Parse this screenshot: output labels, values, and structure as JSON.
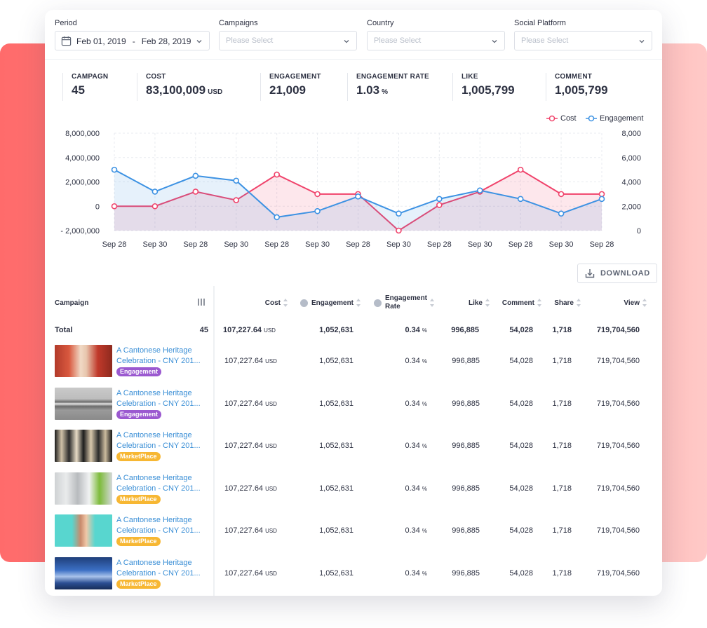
{
  "filters": {
    "period": {
      "label": "Period",
      "start": "Feb 01, 2019",
      "separator": "-",
      "end": "Feb 28, 2019"
    },
    "campaigns": {
      "label": "Campaigns",
      "placeholder": "Please Select"
    },
    "country": {
      "label": "Country",
      "placeholder": "Please Select"
    },
    "social": {
      "label": "Social Platform",
      "placeholder": "Please Select"
    }
  },
  "stats": [
    {
      "label": "CAMPAGN",
      "value": "45",
      "unit": ""
    },
    {
      "label": "COST",
      "value": "83,100,009",
      "unit": "USD"
    },
    {
      "label": "ENGAGEMENT",
      "value": "21,009",
      "unit": ""
    },
    {
      "label": "ENGAGEMENT RATE",
      "value": "1.03",
      "unit": "%"
    },
    {
      "label": "LIKE",
      "value": "1,005,799",
      "unit": ""
    },
    {
      "label": "COMMENT",
      "value": "1,005,799",
      "unit": ""
    }
  ],
  "chart_data": {
    "type": "area",
    "categories": [
      "Sep 28",
      "Sep 30",
      "Sep 28",
      "Sep 30",
      "Sep 28",
      "Sep 30",
      "Sep 28",
      "Sep 30",
      "Sep 28",
      "Sep 30",
      "Sep 28",
      "Sep 30",
      "Sep 28"
    ],
    "series": [
      {
        "name": "Cost",
        "axis": "left",
        "color": "#f0436b",
        "values": [
          0,
          0,
          1200000,
          500000,
          2600000,
          1000000,
          1000000,
          -2000000,
          100000,
          1200000,
          3000000,
          1000000,
          1000000
        ]
      },
      {
        "name": "Engagement",
        "axis": "right",
        "color": "#3d92e3",
        "values": [
          5000,
          3200,
          4500,
          4100,
          1100,
          1600,
          2800,
          1400,
          2600,
          3300,
          2600,
          1400,
          2600
        ]
      }
    ],
    "y_left": {
      "ticks": [
        "8,000,000",
        "4,000,000",
        "2,000,000",
        "0",
        "- 2,000,000"
      ]
    },
    "y_right": {
      "ticks": [
        "8,000",
        "6,000",
        "4,000",
        "2,000",
        "0"
      ]
    },
    "legend_position": "top-right",
    "grid": true
  },
  "download_label": "DOWNLOAD",
  "table": {
    "headers": {
      "campaign": "Campaign",
      "cost": "Cost",
      "engagement": "Engagement",
      "eng_rate_1": "Engagement",
      "eng_rate_2": "Rate",
      "like": "Like",
      "comment": "Comment",
      "share": "Share",
      "view": "View"
    },
    "total": {
      "label": "Total",
      "count": "45",
      "cost": "107,227.64",
      "cost_unit": "USD",
      "engagement": "1,052,631",
      "rate": "0.34",
      "rate_unit": "%",
      "like": "996,885",
      "comment": "54,028",
      "share": "1,718",
      "view": "719,704,560"
    },
    "rows": [
      {
        "name1": "A Cantonese Heritage",
        "name2": "Celebration - CNY 201...",
        "tag": "Engagement",
        "cost": "107,227.64",
        "cost_unit": "USD",
        "engagement": "1,052,631",
        "rate": "0.34",
        "rate_unit": "%",
        "like": "996,885",
        "comment": "54,028",
        "share": "1,718",
        "view": "719,704,560"
      },
      {
        "name1": "A Cantonese Heritage",
        "name2": "Celebration - CNY 201...",
        "tag": "Engagement",
        "cost": "107,227.64",
        "cost_unit": "USD",
        "engagement": "1,052,631",
        "rate": "0.34",
        "rate_unit": "%",
        "like": "996,885",
        "comment": "54,028",
        "share": "1,718",
        "view": "719,704,560"
      },
      {
        "name1": "A Cantonese Heritage",
        "name2": "Celebration - CNY 201...",
        "tag": "MarketPlace",
        "cost": "107,227.64",
        "cost_unit": "USD",
        "engagement": "1,052,631",
        "rate": "0.34",
        "rate_unit": "%",
        "like": "996,885",
        "comment": "54,028",
        "share": "1,718",
        "view": "719,704,560"
      },
      {
        "name1": "A Cantonese Heritage",
        "name2": "Celebration - CNY 201...",
        "tag": "MarketPlace",
        "cost": "107,227.64",
        "cost_unit": "USD",
        "engagement": "1,052,631",
        "rate": "0.34",
        "rate_unit": "%",
        "like": "996,885",
        "comment": "54,028",
        "share": "1,718",
        "view": "719,704,560"
      },
      {
        "name1": "A Cantonese Heritage",
        "name2": "Celebration - CNY 201...",
        "tag": "MarketPlace",
        "cost": "107,227.64",
        "cost_unit": "USD",
        "engagement": "1,052,631",
        "rate": "0.34",
        "rate_unit": "%",
        "like": "996,885",
        "comment": "54,028",
        "share": "1,718",
        "view": "719,704,560"
      },
      {
        "name1": "A Cantonese Heritage",
        "name2": "Celebration - CNY 201...",
        "tag": "MarketPlace",
        "cost": "107,227.64",
        "cost_unit": "USD",
        "engagement": "1,052,631",
        "rate": "0.34",
        "rate_unit": "%",
        "like": "996,885",
        "comment": "54,028",
        "share": "1,718",
        "view": "719,704,560"
      }
    ]
  }
}
